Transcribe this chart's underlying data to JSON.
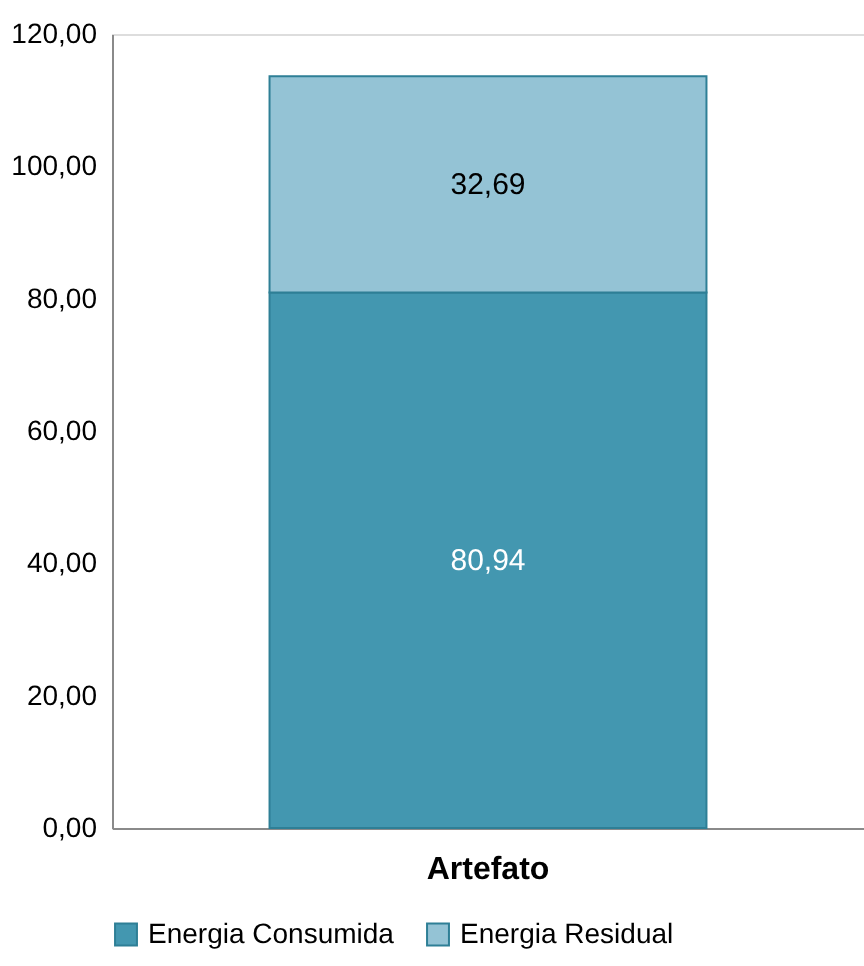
{
  "chart_data": {
    "type": "bar",
    "stacked": true,
    "categories": [
      "Artefato"
    ],
    "series": [
      {
        "name": "Energia Consumida",
        "color": "#4397b0",
        "values": [
          80.94
        ],
        "value_labels": [
          "80,94"
        ]
      },
      {
        "name": "Energia Residual",
        "color": "#94c3d5",
        "values": [
          32.69
        ],
        "value_labels": [
          "32,69"
        ]
      }
    ],
    "ylim": [
      0,
      120
    ],
    "yticks": [
      {
        "value": 0,
        "label": "0,00"
      },
      {
        "value": 20,
        "label": "20,00"
      },
      {
        "value": 40,
        "label": "40,00"
      },
      {
        "value": 60,
        "label": "60,00"
      },
      {
        "value": 80,
        "label": "80,00"
      },
      {
        "value": 100,
        "label": "100,00"
      },
      {
        "value": 120,
        "label": "120,00"
      }
    ],
    "grid": false,
    "legend": "bottom"
  }
}
